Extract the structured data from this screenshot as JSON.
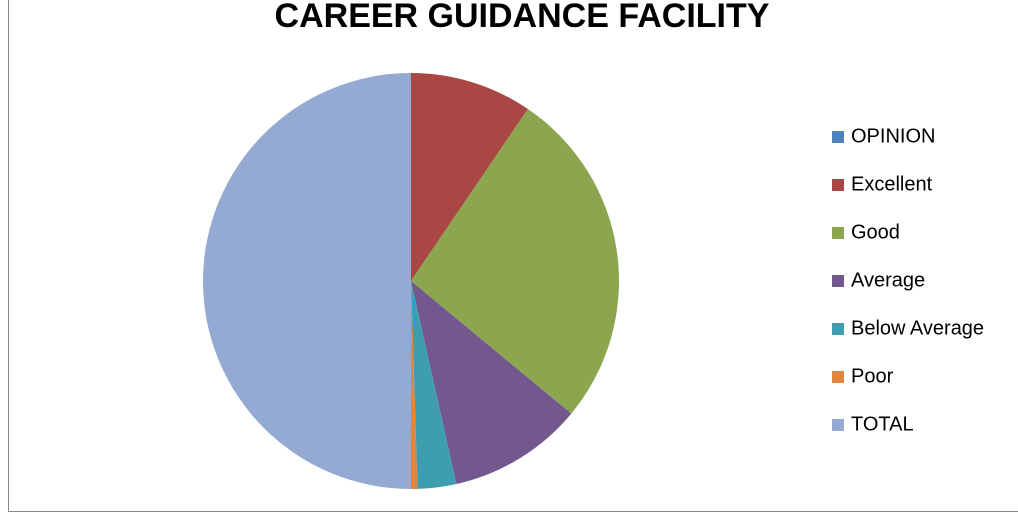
{
  "chart_data": {
    "type": "pie",
    "title": "CAREER GUIDANCE FACILITY",
    "categories": [
      "OPINION",
      "Excellent",
      "Good",
      "Average",
      "Below Average",
      "Poor",
      "TOTAL"
    ],
    "values": [
      0,
      19,
      53,
      21,
      6,
      1,
      100
    ],
    "colors": [
      "#4f81bd",
      "#a94744",
      "#8ba64e",
      "#72588f",
      "#3f9db0",
      "#e0863f",
      "#94aad3"
    ],
    "legend": "right"
  }
}
